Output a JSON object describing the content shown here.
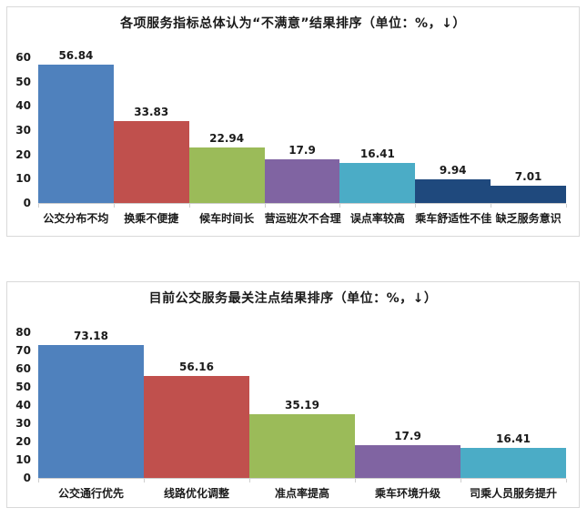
{
  "ui": {
    "panel_border_color": "#d9d9d9",
    "axis_line_color": "#cfcfcf",
    "text_color": "#1a1a1a",
    "background_color": "#ffffff"
  },
  "chart_data": [
    {
      "type": "bar",
      "title": "各项服务指标总体认为“不满意”结果排序（单位：%，↓）",
      "categories": [
        "公交分布不均",
        "换乘不便捷",
        "候车时间长",
        "营运班次不合理",
        "误点率较高",
        "乘车舒适性不佳",
        "缺乏服务意识"
      ],
      "values": [
        56.84,
        33.83,
        22.94,
        17.9,
        16.41,
        9.94,
        7.01
      ],
      "colors": [
        "#4F81BD",
        "#C0504D",
        "#9BBB59",
        "#8064A2",
        "#4BACC6",
        "#1F497D",
        "#1F497D"
      ],
      "xlabel": "",
      "ylabel": "",
      "ylim": [
        0,
        60
      ],
      "yticks": [
        0,
        10,
        20,
        30,
        40,
        50,
        60
      ],
      "grid": false,
      "legend": "none",
      "sorted": "descending"
    },
    {
      "type": "bar",
      "title": "目前公交服务最关注点结果排序（单位：%，↓）",
      "categories": [
        "公交通行优先",
        "线路优化调整",
        "准点率提高",
        "乘车环境升级",
        "司乘人员服务提升"
      ],
      "values": [
        73.18,
        56.16,
        35.19,
        17.9,
        16.41
      ],
      "colors": [
        "#4F81BD",
        "#C0504D",
        "#9BBB59",
        "#8064A2",
        "#4BACC6"
      ],
      "xlabel": "",
      "ylabel": "",
      "ylim": [
        0,
        80
      ],
      "yticks": [
        0,
        10,
        20,
        30,
        40,
        50,
        60,
        70,
        80
      ],
      "grid": false,
      "legend": "none",
      "sorted": "descending"
    }
  ]
}
